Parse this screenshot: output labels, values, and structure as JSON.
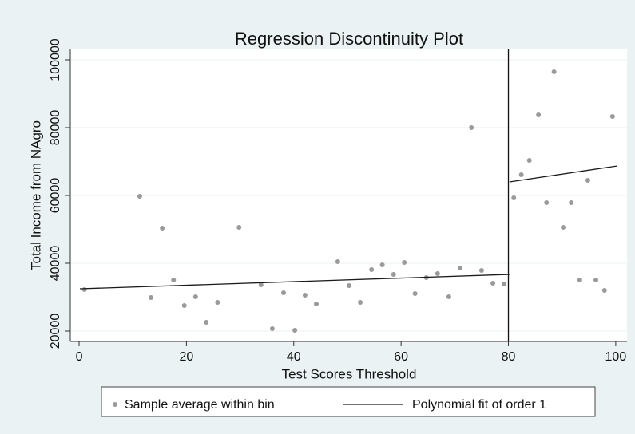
{
  "chart_data": {
    "type": "scatter",
    "title": "Regression Discontinuity Plot",
    "x_label": "Test Scores Threshold",
    "y_label": "Total Income from NAgro",
    "xlim": [
      -1.64,
      102.1
    ],
    "ylim": [
      16941,
      103059
    ],
    "xticks": [
      0,
      20,
      40,
      60,
      80,
      100
    ],
    "yticks": [
      20000,
      40000,
      60000,
      80000,
      100000
    ],
    "grid": true,
    "cutoff": 80,
    "legend": "bottom",
    "series": [
      {
        "name": "Sample average within bin",
        "color": "#9a9a9a",
        "kind": "points",
        "x": [
          1.0,
          11.3,
          13.4,
          15.5,
          17.6,
          19.6,
          21.7,
          23.7,
          25.8,
          29.8,
          33.9,
          36.0,
          38.1,
          40.2,
          42.1,
          44.2,
          48.2,
          50.3,
          52.4,
          54.5,
          56.5,
          58.6,
          60.6,
          62.6,
          64.7,
          66.8,
          68.9,
          71.0,
          73.1,
          75.0,
          77.1,
          79.2,
          81.0,
          82.4,
          83.9,
          85.6,
          87.1,
          88.5,
          90.2,
          91.7,
          93.3,
          94.8,
          96.3,
          97.9,
          99.4
        ],
        "values": [
          32235,
          59765,
          29882,
          50353,
          35059,
          27529,
          30118,
          22588,
          28471,
          50588,
          33647,
          20706,
          31294,
          20235,
          30588,
          28000,
          40471,
          33412,
          28471,
          38118,
          39529,
          36706,
          40235,
          31059,
          35765,
          36941,
          30118,
          38588,
          80000,
          37882,
          34118,
          33882,
          59294,
          66118,
          70353,
          83765,
          57882,
          96471,
          50588,
          57882,
          35059,
          64471,
          35059,
          32000,
          83294
        ]
      },
      {
        "name": "Polynomial fit of order 1",
        "color": "#1a1a1a",
        "kind": "line",
        "x": [
          0.15,
          80.2,
          null,
          80.2,
          100.3
        ],
        "values": [
          32471,
          36706,
          null,
          64000,
          68706
        ]
      }
    ]
  }
}
